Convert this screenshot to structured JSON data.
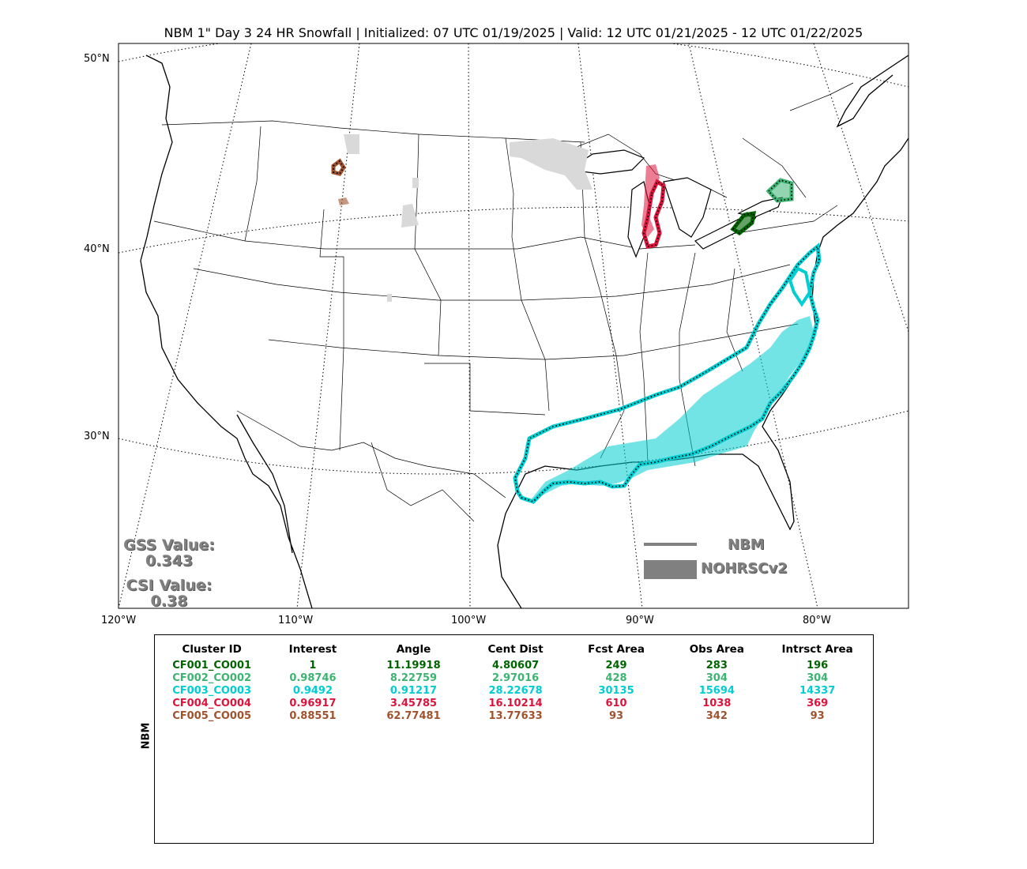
{
  "title": "NBM 1\" Day 3 24 HR Snowfall | Initialized: 07 UTC 01/19/2025 | Valid: 12 UTC 01/21/2025 - 12 UTC 01/22/2025",
  "latitude_labels": [
    "50°N",
    "40°N",
    "30°N"
  ],
  "longitude_labels": [
    "120°W",
    "110°W",
    "100°W",
    "90°W",
    "80°W"
  ],
  "scores": {
    "gss_label": "GSS Value:",
    "gss_value": "0.343",
    "csi_label": "CSI Value:",
    "csi_value": "0.38"
  },
  "legend": {
    "forecast_label": "NBM",
    "observed_label": "NOHRSCv2"
  },
  "table": {
    "side_label": "NBM",
    "columns": [
      "Cluster ID",
      "Interest",
      "Angle",
      "Cent Dist",
      "Fcst Area",
      "Obs Area",
      "Intrsct Area"
    ],
    "rows": [
      {
        "color": "#006400",
        "cells": [
          "CF001_CO001",
          "1",
          "11.19918",
          "4.80607",
          "249",
          "283",
          "196"
        ]
      },
      {
        "color": "#3cb371",
        "cells": [
          "CF002_CO002",
          "0.98746",
          "8.22759",
          "2.97016",
          "428",
          "304",
          "304"
        ]
      },
      {
        "color": "#00ced1",
        "cells": [
          "CF003_CO003",
          "0.9492",
          "0.91217",
          "28.22678",
          "30135",
          "15694",
          "14337"
        ]
      },
      {
        "color": "#dc143c",
        "cells": [
          "CF004_CO004",
          "0.96917",
          "3.45785",
          "16.10214",
          "610",
          "1038",
          "369"
        ]
      },
      {
        "color": "#a0522d",
        "cells": [
          "CF005_CO005",
          "0.88551",
          "62.77481",
          "13.77633",
          "93",
          "342",
          "93"
        ]
      }
    ]
  },
  "colors": {
    "cluster1": "#006400",
    "cluster2": "#3cb371",
    "cluster3": "#00ced1",
    "cluster4": "#dc143c",
    "cluster5": "#a0522d",
    "unmatched_obs": "#d9d9d9",
    "legend_gray": "#808080"
  }
}
